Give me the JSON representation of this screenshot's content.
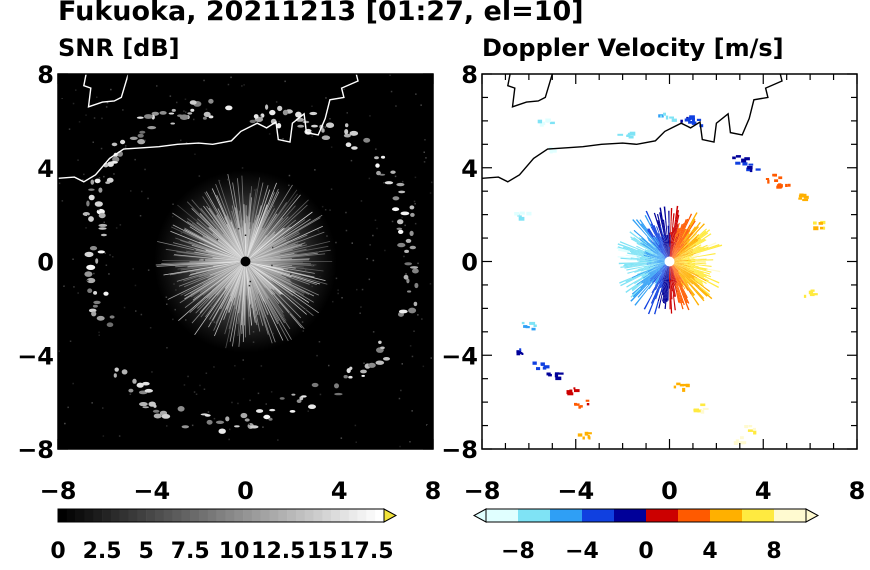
{
  "figure_title": "Fukuoka, 20211213 [01:27, el=10]",
  "chart_data": [
    {
      "type": "heatmap",
      "title": "SNR [dB]",
      "x_ticks": [
        "−8",
        "−4",
        "0",
        "4",
        "8"
      ],
      "y_ticks": [
        "8",
        "4",
        "0",
        "−4",
        "−8"
      ],
      "xlim": [
        -8,
        8
      ],
      "ylim": [
        -8,
        8
      ],
      "colorbar": {
        "min": 0,
        "max": 18.5,
        "step": 0.5,
        "extend": "max",
        "labels": [
          "0",
          "2.5",
          "5",
          "7.5",
          "10",
          "12.5",
          "15",
          "17.5"
        ],
        "label_values": [
          0,
          2.5,
          5,
          7.5,
          10,
          12.5,
          15,
          17.5
        ],
        "colors": {
          "low": "#000000",
          "high": "#ffffff",
          "over": "#f2e33a"
        }
      },
      "background": "#000000",
      "features": {
        "center_echo_radius": 3.9,
        "radar_location": [
          0,
          0
        ],
        "clutter_ring_radius_approx": 6.8
      }
    },
    {
      "type": "heatmap",
      "title": "Doppler Velocity [m/s]",
      "x_ticks": [
        "−8",
        "−4",
        "0",
        "4",
        "8"
      ],
      "y_ticks": [
        "8",
        "4",
        "0",
        "−4",
        "−8"
      ],
      "xlim": [
        -8,
        8
      ],
      "ylim": [
        -8,
        8
      ],
      "colorbar": {
        "min": -10,
        "max": 10,
        "extend": "both",
        "labels": [
          "−8",
          "−4",
          "0",
          "4",
          "8"
        ],
        "label_values": [
          -8,
          -4,
          0,
          4,
          8
        ],
        "colors": [
          "#e0ffff",
          "#7fe3f5",
          "#2f9ff5",
          "#1040e0",
          "#000099",
          "#cc0000",
          "#ff5a00",
          "#ffb000",
          "#ffea40",
          "#fffad0"
        ]
      },
      "background": "#ffffff",
      "features": {
        "center_echo_radius": 2.3,
        "radar_location": [
          0,
          0
        ]
      }
    }
  ]
}
